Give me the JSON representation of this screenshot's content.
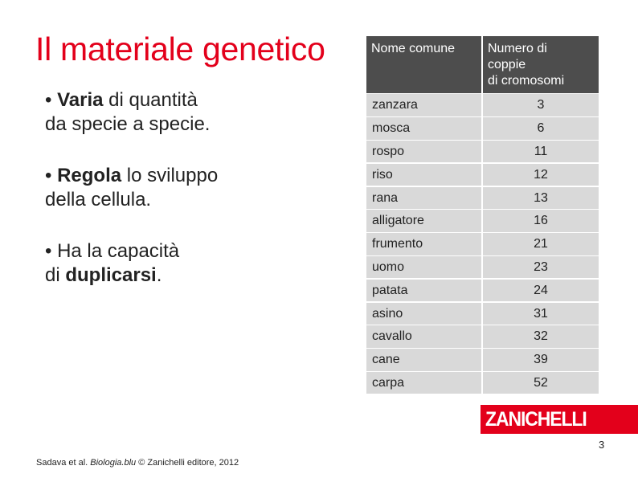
{
  "title": "Il materiale genetico",
  "bullets": [
    {
      "prefix": "• ",
      "bold": "Varia",
      "rest_line1": " di quantità",
      "line2": "da specie a specie."
    },
    {
      "prefix": "• ",
      "bold": "Regola",
      "rest_line1": " lo sviluppo",
      "line2": "della cellula."
    },
    {
      "line1": "• Ha la capacità",
      "line2_prefix": "di ",
      "line2_bold": "duplicarsi",
      "line2_suffix": "."
    }
  ],
  "table": {
    "headers": [
      "Nome comune",
      "Numero di coppie di cromosomi"
    ],
    "header_lines": [
      "Numero di",
      "coppie",
      "di cromosomi"
    ],
    "rows": [
      {
        "name": "zanzara",
        "value": "3"
      },
      {
        "name": "mosca",
        "value": "6"
      },
      {
        "name": "rospo",
        "value": "11"
      },
      {
        "name": "riso",
        "value": "12"
      },
      {
        "name": "rana",
        "value": "13"
      },
      {
        "name": "alligatore",
        "value": "16"
      },
      {
        "name": "frumento",
        "value": "21"
      },
      {
        "name": "uomo",
        "value": "23"
      },
      {
        "name": "patata",
        "value": "24"
      },
      {
        "name": "asino",
        "value": "31"
      },
      {
        "name": "cavallo",
        "value": "32"
      },
      {
        "name": "cane",
        "value": "39"
      },
      {
        "name": "carpa",
        "value": "52"
      }
    ]
  },
  "logo": {
    "text": "ZANICHELLI",
    "color": "#e3001b"
  },
  "page_number": "3",
  "credit": {
    "prefix": "Sadava et al. ",
    "italic": "Biologia.blu",
    "suffix": " © Zanichelli editore, 2012"
  },
  "colors": {
    "accent": "#e3001b",
    "header_bg": "#4d4d4d",
    "cell_bg": "#d9d9d9"
  }
}
